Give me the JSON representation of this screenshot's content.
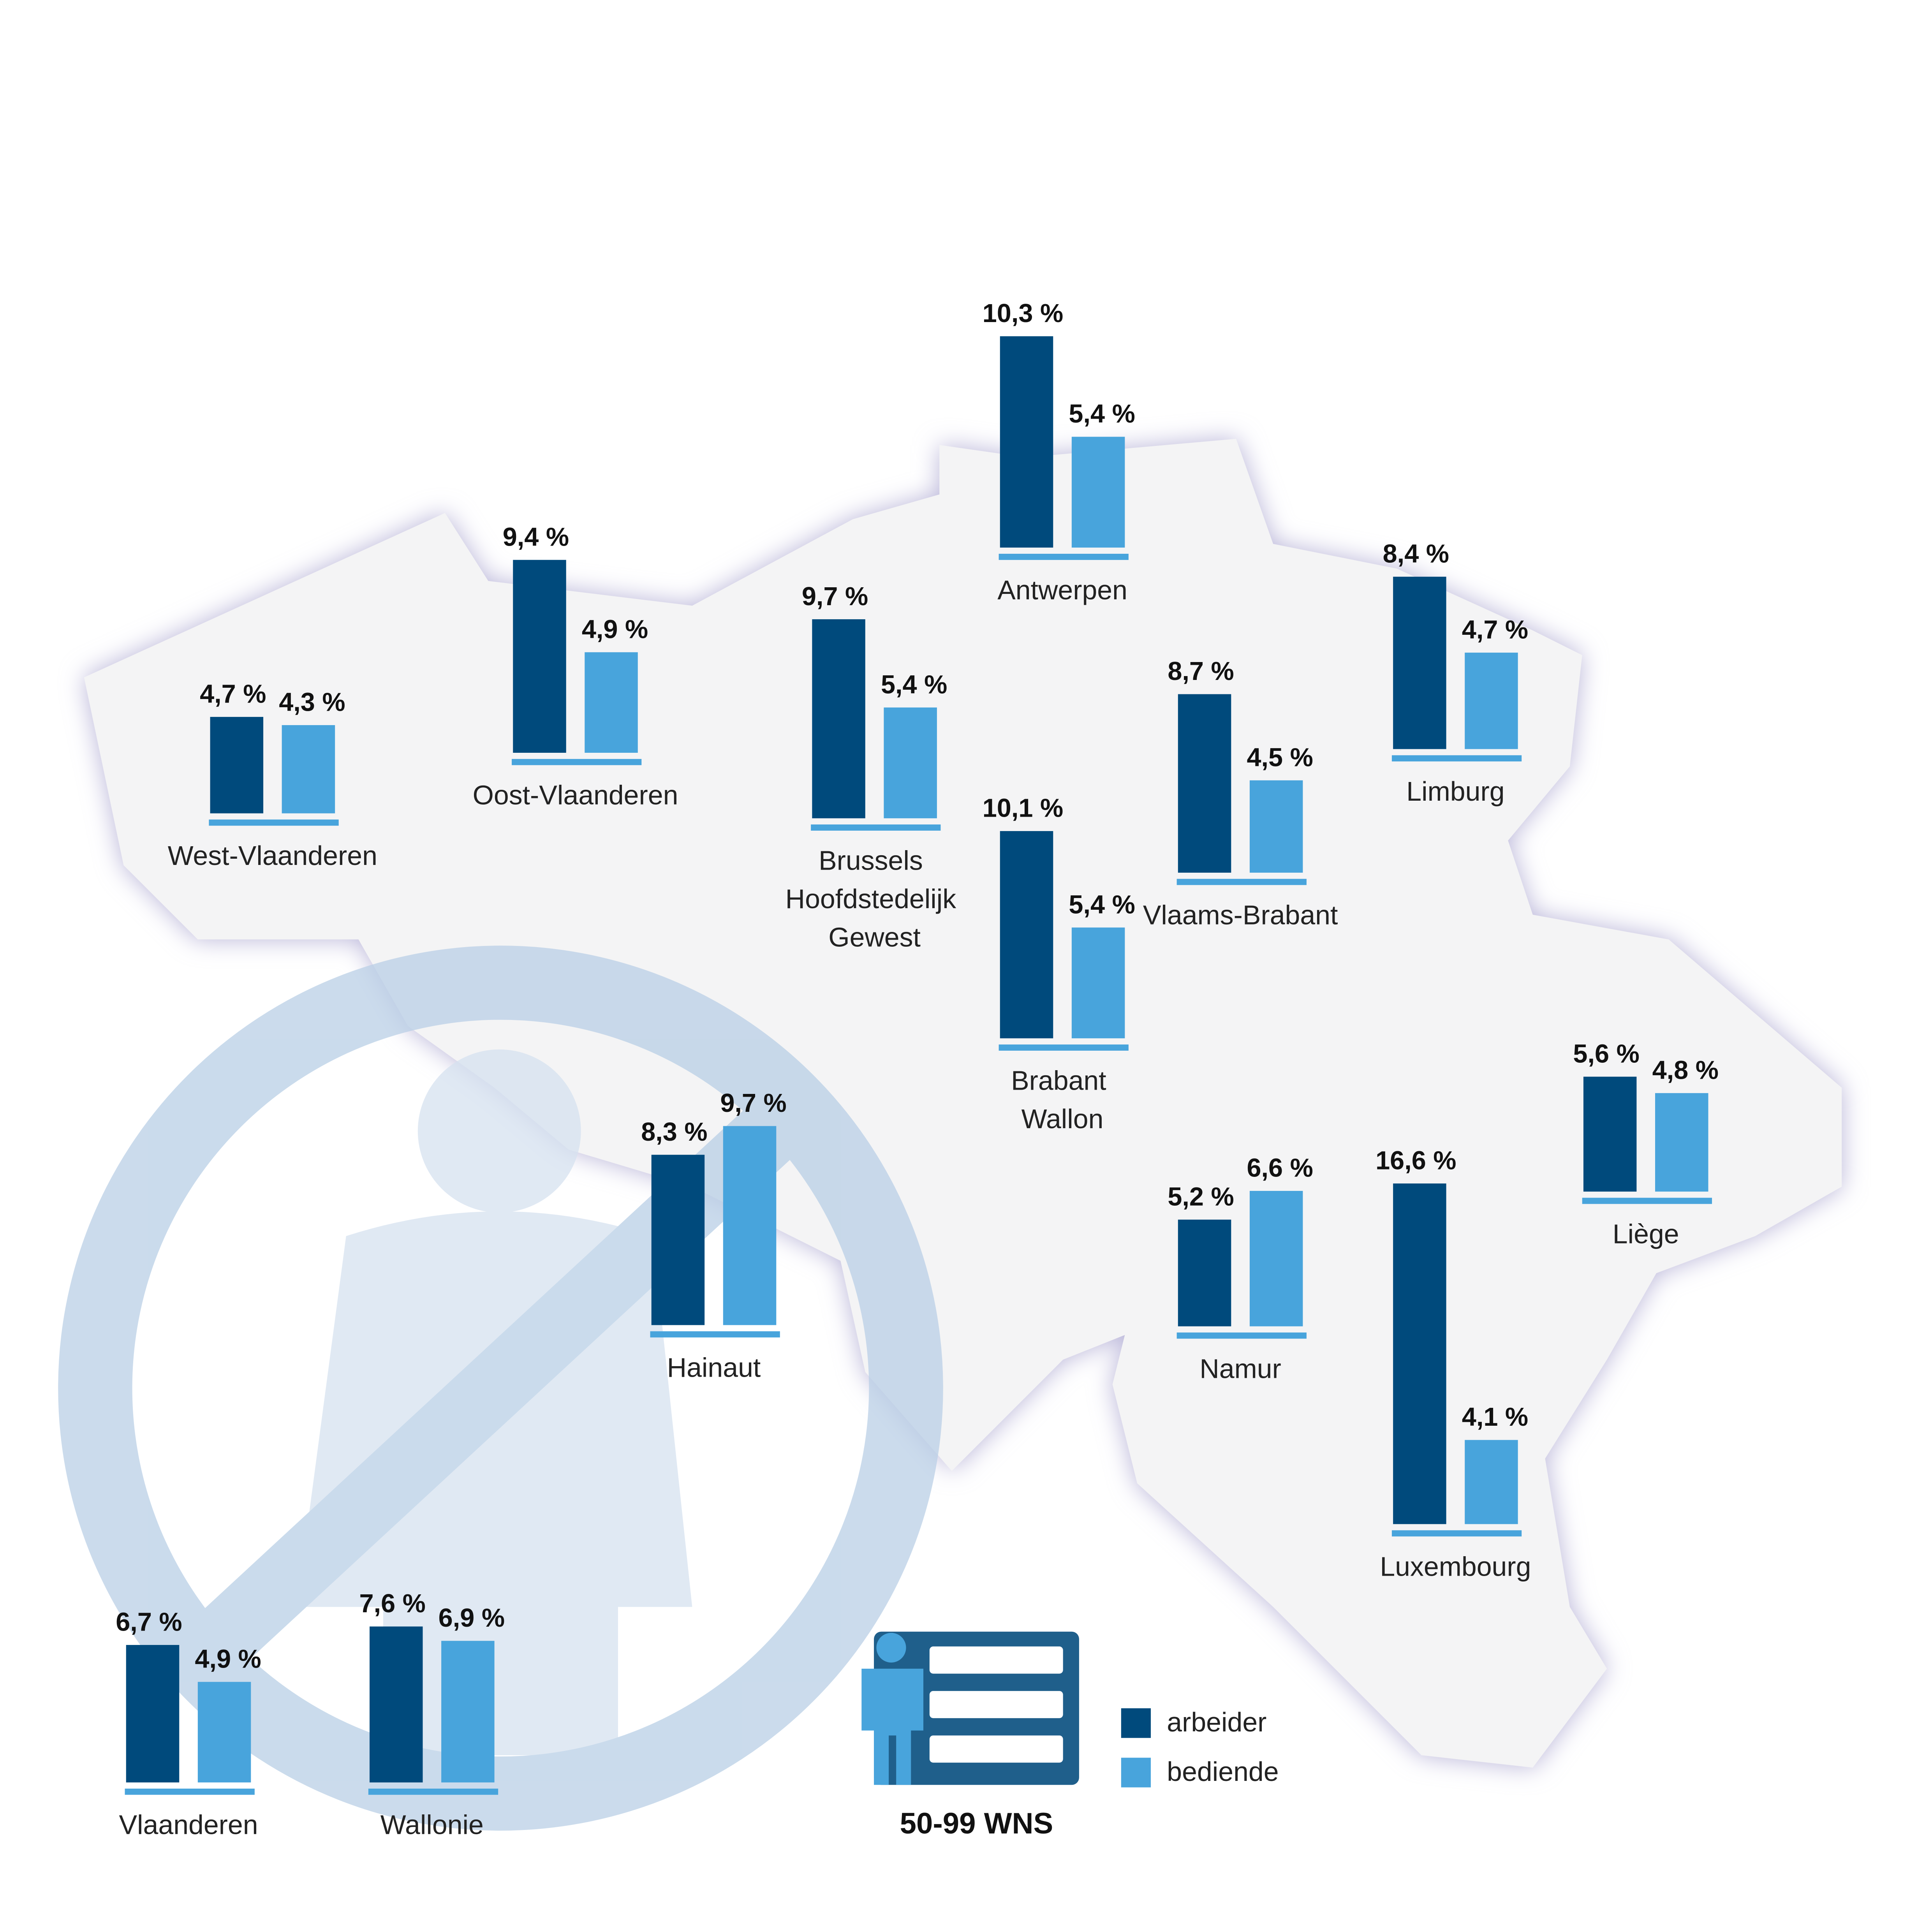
{
  "chart_data": {
    "type": "bar",
    "categories": [
      "West-Vlaanderen",
      "Oost-Vlaanderen",
      "Brussels Hoofdstedelijk Gewest",
      "Antwerpen",
      "Vlaams-Brabant",
      "Limburg",
      "Brabant Wallon",
      "Hainaut",
      "Namur",
      "Liège",
      "Luxembourg",
      "Vlaanderen",
      "Wallonie"
    ],
    "series": [
      {
        "name": "arbeider",
        "color": "#004a7c",
        "values": [
          4.7,
          9.4,
          9.7,
          10.3,
          8.7,
          8.4,
          10.1,
          8.3,
          5.2,
          5.6,
          16.6,
          6.7,
          7.6
        ],
        "value_labels": [
          "4,7 %",
          "9,4 %",
          "9,7 %",
          "10,3 %",
          "8,7 %",
          "8,4 %",
          "10,1 %",
          "8,3 %",
          "5,2 %",
          "5,6 %",
          "16,6 %",
          "6,7 %",
          "7,6 %"
        ]
      },
      {
        "name": "bediende",
        "color": "#48a4dc",
        "values": [
          4.3,
          4.9,
          5.4,
          5.4,
          4.5,
          4.7,
          5.4,
          9.7,
          6.6,
          4.8,
          4.1,
          4.9,
          6.9
        ],
        "value_labels": [
          "4,3 %",
          "4,9 %",
          "5,4 %",
          "5,4 %",
          "4,5 %",
          "4,7 %",
          "5,4 %",
          "9,7 %",
          "6,6 %",
          "4,8 %",
          "4,1 %",
          "4,9 %",
          "6,9 %"
        ]
      }
    ],
    "label": "50-99 WNS"
  }
}
